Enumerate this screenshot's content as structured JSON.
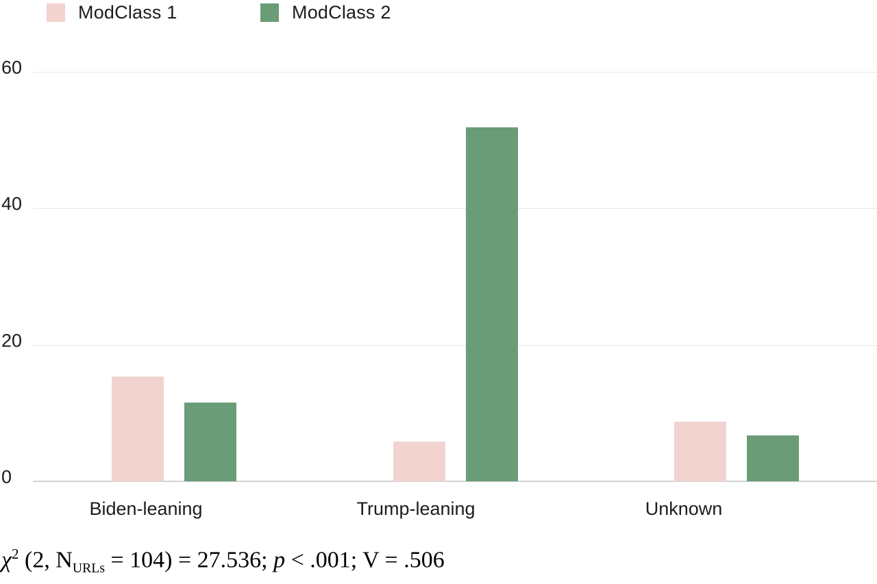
{
  "legend": {
    "items": [
      {
        "label": "ModClass 1",
        "color": "#f2d3d0"
      },
      {
        "label": "ModClass 2",
        "color": "#6a9c77"
      }
    ]
  },
  "chart_data": {
    "type": "bar",
    "title": "",
    "xlabel": "",
    "ylabel": "",
    "categories": [
      "Biden-leaning",
      "Trump-leaning",
      "Unknown"
    ],
    "series": [
      {
        "name": "ModClass 1",
        "color": "#f2d3d0",
        "values": [
          15.4,
          5.8,
          8.7
        ]
      },
      {
        "name": "ModClass 2",
        "color": "#6a9c77",
        "values": [
          11.5,
          51.9,
          6.7
        ]
      }
    ],
    "ylim": [
      0,
      60
    ],
    "yticks": [
      0,
      20,
      40,
      60
    ],
    "grid": "horizontal",
    "legend_position": "top-left"
  },
  "caption": {
    "chi": "χ",
    "chi_sup": "2",
    "seg1": " (2, N",
    "n_sub": "URLs",
    "seg2": " = 104) = 27.536; ",
    "p": "p",
    "seg3": " < .001; V = .506"
  }
}
